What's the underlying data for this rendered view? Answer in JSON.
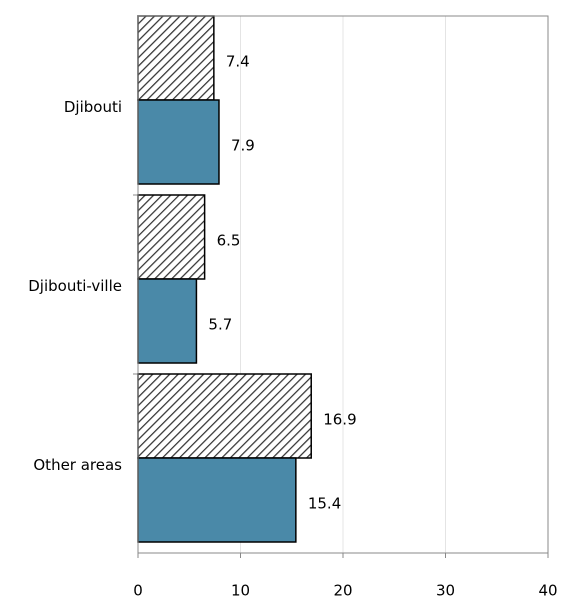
{
  "chart_data": {
    "type": "hbar",
    "categories": [
      "Djibouti",
      "Djibouti-ville",
      "Other areas"
    ],
    "series": [
      {
        "color": "#333333",
        "hatch": true,
        "values": [
          7.4,
          6.5,
          16.9
        ]
      },
      {
        "color": "#4a89a8",
        "hatch": false,
        "values": [
          7.9,
          5.7,
          15.4
        ]
      }
    ],
    "xlim": [
      0,
      40
    ],
    "xticks": [
      0,
      10,
      20,
      30,
      40
    ],
    "grid": true
  }
}
